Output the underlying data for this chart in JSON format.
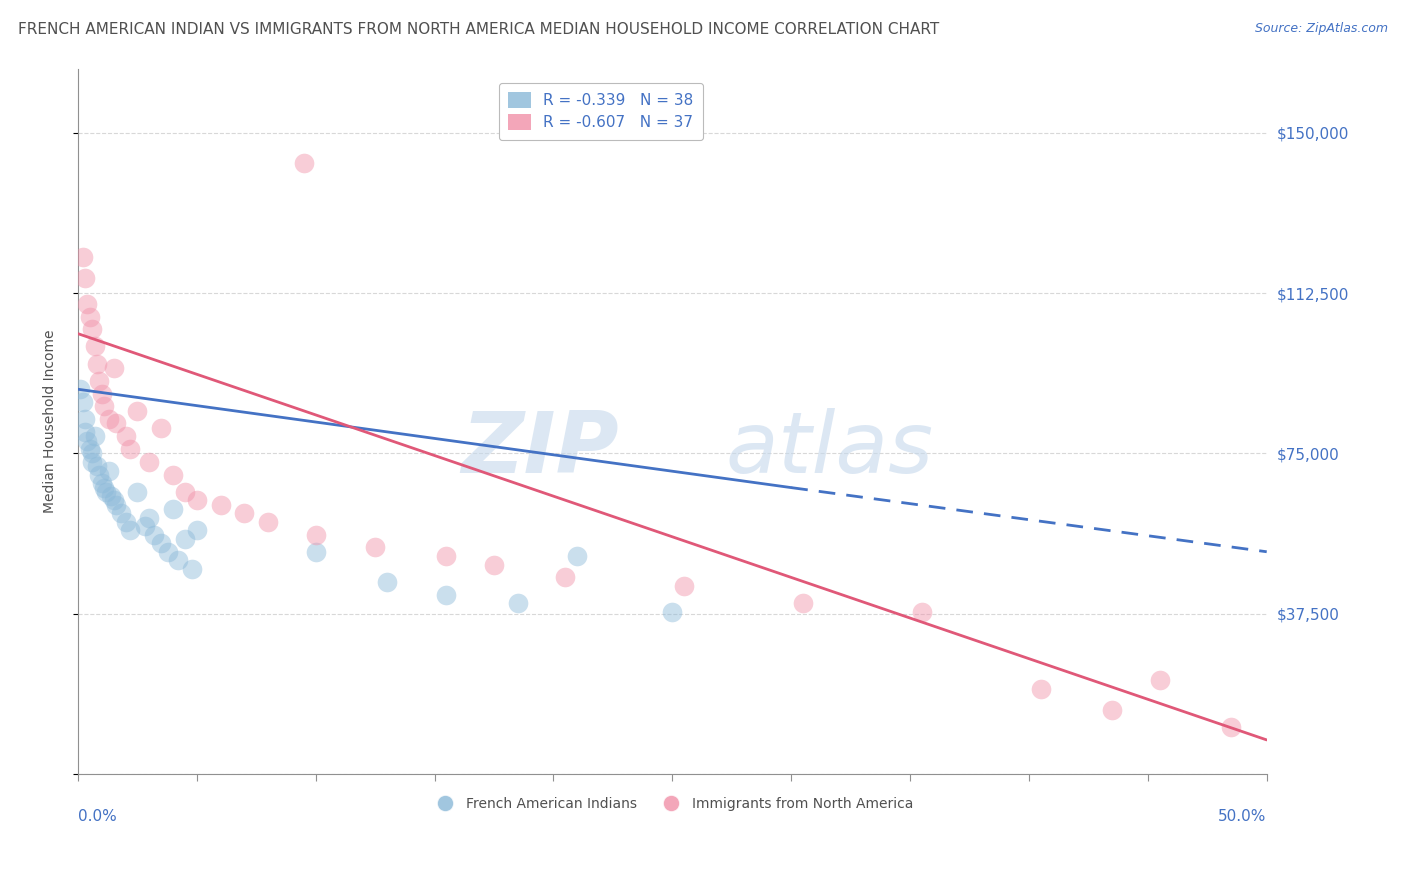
{
  "title": "FRENCH AMERICAN INDIAN VS IMMIGRANTS FROM NORTH AMERICA MEDIAN HOUSEHOLD INCOME CORRELATION CHART",
  "source": "Source: ZipAtlas.com",
  "ylabel": "Median Household Income",
  "xlim": [
    0.0,
    0.5
  ],
  "ylim": [
    0,
    165000
  ],
  "yticks": [
    0,
    37500,
    75000,
    112500,
    150000
  ],
  "ytick_labels_right": [
    "",
    "$37,500",
    "$75,000",
    "$112,500",
    "$150,000"
  ],
  "legend_r_labels": [
    "R = -0.339   N = 38",
    "R = -0.607   N = 37"
  ],
  "bottom_legend_labels": [
    "French American Indians",
    "Immigrants from North America"
  ],
  "blue_color": "#8ab8d8",
  "pink_color": "#f090a8",
  "blue_line_color": "#4472c4",
  "pink_line_color": "#e05878",
  "blue_scatter": [
    [
      0.001,
      90000
    ],
    [
      0.002,
      87000
    ],
    [
      0.003,
      83000
    ],
    [
      0.003,
      80000
    ],
    [
      0.004,
      78000
    ],
    [
      0.005,
      76000
    ],
    [
      0.006,
      75000
    ],
    [
      0.006,
      73000
    ],
    [
      0.007,
      79000
    ],
    [
      0.008,
      72000
    ],
    [
      0.009,
      70000
    ],
    [
      0.01,
      68000
    ],
    [
      0.011,
      67000
    ],
    [
      0.012,
      66000
    ],
    [
      0.013,
      71000
    ],
    [
      0.014,
      65000
    ],
    [
      0.015,
      64000
    ],
    [
      0.016,
      63000
    ],
    [
      0.018,
      61000
    ],
    [
      0.02,
      59000
    ],
    [
      0.022,
      57000
    ],
    [
      0.025,
      66000
    ],
    [
      0.028,
      58000
    ],
    [
      0.03,
      60000
    ],
    [
      0.032,
      56000
    ],
    [
      0.035,
      54000
    ],
    [
      0.038,
      52000
    ],
    [
      0.04,
      62000
    ],
    [
      0.042,
      50000
    ],
    [
      0.045,
      55000
    ],
    [
      0.048,
      48000
    ],
    [
      0.05,
      57000
    ],
    [
      0.1,
      52000
    ],
    [
      0.13,
      45000
    ],
    [
      0.155,
      42000
    ],
    [
      0.185,
      40000
    ],
    [
      0.21,
      51000
    ],
    [
      0.25,
      38000
    ]
  ],
  "pink_scatter": [
    [
      0.002,
      121000
    ],
    [
      0.003,
      116000
    ],
    [
      0.004,
      110000
    ],
    [
      0.005,
      107000
    ],
    [
      0.006,
      104000
    ],
    [
      0.007,
      100000
    ],
    [
      0.008,
      96000
    ],
    [
      0.009,
      92000
    ],
    [
      0.01,
      89000
    ],
    [
      0.011,
      86000
    ],
    [
      0.013,
      83000
    ],
    [
      0.015,
      95000
    ],
    [
      0.016,
      82000
    ],
    [
      0.02,
      79000
    ],
    [
      0.022,
      76000
    ],
    [
      0.025,
      85000
    ],
    [
      0.03,
      73000
    ],
    [
      0.035,
      81000
    ],
    [
      0.04,
      70000
    ],
    [
      0.045,
      66000
    ],
    [
      0.05,
      64000
    ],
    [
      0.06,
      63000
    ],
    [
      0.07,
      61000
    ],
    [
      0.08,
      59000
    ],
    [
      0.095,
      143000
    ],
    [
      0.1,
      56000
    ],
    [
      0.125,
      53000
    ],
    [
      0.155,
      51000
    ],
    [
      0.175,
      49000
    ],
    [
      0.205,
      46000
    ],
    [
      0.255,
      44000
    ],
    [
      0.305,
      40000
    ],
    [
      0.355,
      38000
    ],
    [
      0.405,
      20000
    ],
    [
      0.435,
      15000
    ],
    [
      0.455,
      22000
    ],
    [
      0.485,
      11000
    ]
  ],
  "blue_line": {
    "x": [
      0.0,
      0.3
    ],
    "y": [
      90000,
      67000
    ]
  },
  "blue_dash": {
    "x": [
      0.3,
      0.5
    ],
    "y": [
      67000,
      52000
    ]
  },
  "pink_line": {
    "x": [
      0.0,
      0.5
    ],
    "y": [
      103000,
      8000
    ]
  },
  "watermark_zip": "ZIP",
  "watermark_atlas": "atlas",
  "background_color": "#ffffff",
  "grid_color": "#d8d8d8",
  "title_color": "#505050",
  "axis_color": "#909090",
  "tick_label_color": "#4472c4",
  "title_fontsize": 11,
  "source_fontsize": 9,
  "ylabel_fontsize": 10,
  "legend_fontsize": 11,
  "scatter_size": 200,
  "scatter_alpha": 0.45,
  "line_width": 2.0
}
